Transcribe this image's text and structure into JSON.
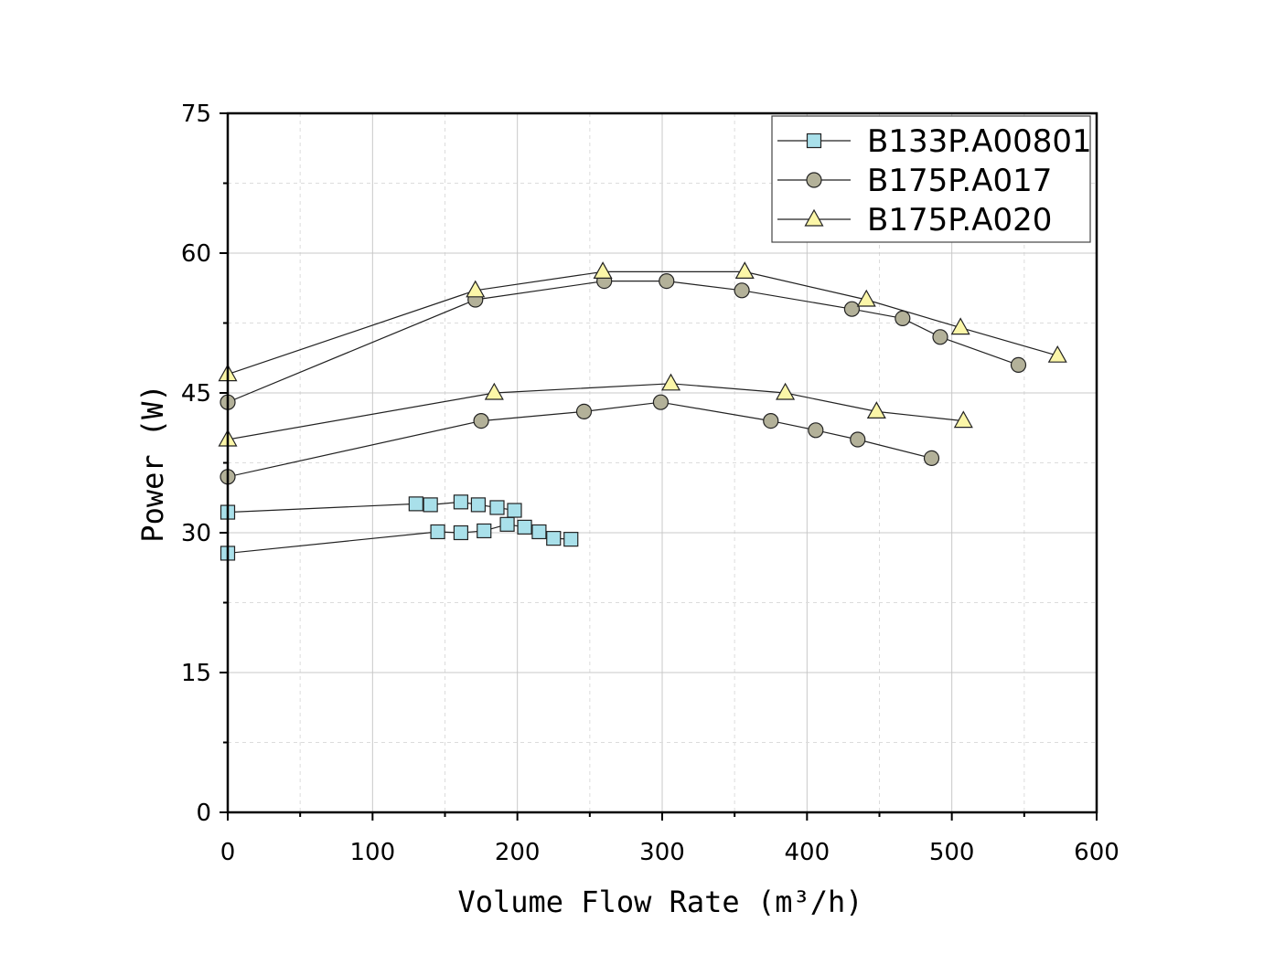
{
  "chart_data": {
    "type": "line",
    "xlabel": "Volume Flow Rate (m³/h)",
    "ylabel": "Power (W)",
    "xlim": [
      0,
      600
    ],
    "ylim": [
      0,
      75
    ],
    "xticks": [
      0,
      100,
      200,
      300,
      400,
      500,
      600
    ],
    "yticks": [
      0,
      15,
      30,
      45,
      60,
      75
    ],
    "grid": true,
    "legend_position": "top-right",
    "series": [
      {
        "name": "B133P.A00801",
        "marker": "square",
        "color": "#a9e0ea",
        "curves": [
          {
            "x": [
              0,
              130,
              140,
              161,
              173,
              186,
              198
            ],
            "y": [
              32.2,
              33.1,
              33.0,
              33.3,
              33.0,
              32.7,
              32.4
            ]
          },
          {
            "x": [
              0,
              145,
              161,
              177,
              193,
              205,
              215,
              225,
              237
            ],
            "y": [
              27.8,
              30.1,
              30.0,
              30.2,
              30.9,
              30.6,
              30.1,
              29.4,
              29.3
            ]
          }
        ]
      },
      {
        "name": "B175P.A017",
        "marker": "circle",
        "color": "#b3b199",
        "curves": [
          {
            "x": [
              0,
              171,
              260,
              303,
              355,
              431,
              466,
              492,
              546
            ],
            "y": [
              44,
              55,
              57,
              57,
              56,
              54,
              53,
              51,
              48
            ]
          },
          {
            "x": [
              0,
              175,
              246,
              299,
              375,
              406,
              435,
              486
            ],
            "y": [
              36,
              42,
              43,
              44,
              42,
              41,
              40,
              38
            ]
          }
        ]
      },
      {
        "name": "B175P.A020",
        "marker": "triangle",
        "color": "#fbf6a8",
        "curves": [
          {
            "x": [
              0,
              171,
              259,
              357,
              441,
              506,
              573
            ],
            "y": [
              47,
              56,
              58,
              58,
              55,
              52,
              49
            ]
          },
          {
            "x": [
              0,
              184,
              306,
              385,
              448,
              508
            ],
            "y": [
              40,
              45,
              46,
              45,
              43,
              42
            ]
          }
        ]
      }
    ]
  }
}
